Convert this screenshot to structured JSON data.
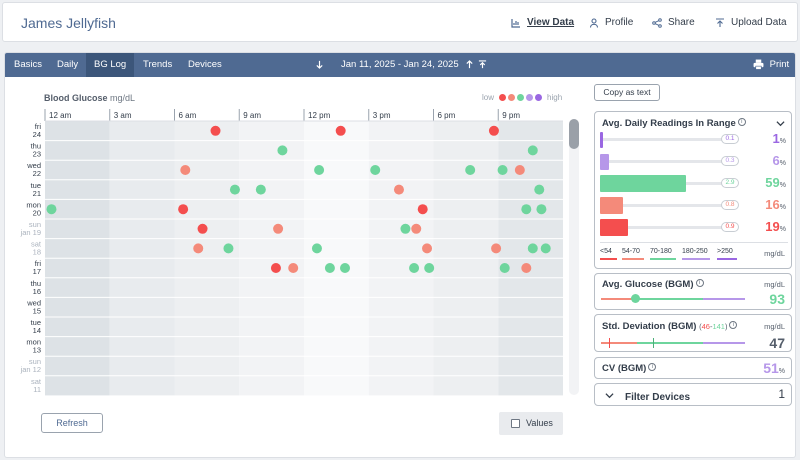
{
  "header": {
    "patient_name": "James Jellyfish",
    "view_data": "View Data",
    "profile": "Profile",
    "share": "Share",
    "upload_data": "Upload Data"
  },
  "nav": {
    "tabs": [
      "Basics",
      "Daily",
      "BG Log",
      "Trends",
      "Devices"
    ],
    "active_tab": "BG Log",
    "date_range": "Jan 11, 2025 - Jan 24, 2025",
    "print": "Print"
  },
  "chart": {
    "title": "Blood Glucose",
    "unit": "mg/dL",
    "legend_low": "low",
    "legend_high": "high",
    "legend_colors": [
      "#f44e4e",
      "#f48a7a",
      "#6ed59d",
      "#b697e9",
      "#9a67e2"
    ],
    "refresh": "Refresh",
    "values_label": "Values"
  },
  "colors": {
    "very_low": "#f44e4e",
    "low": "#f48a7a",
    "target": "#6ed59d",
    "high": "#b697e9",
    "very_high": "#9a67e2",
    "nav": "#4f6a92"
  },
  "chart_data": {
    "type": "scatter",
    "x_ticks": [
      "12 am",
      "3 am",
      "6 am",
      "9 am",
      "12 pm",
      "3 pm",
      "6 pm",
      "9 pm"
    ],
    "x_range_hours": [
      0,
      24
    ],
    "days": [
      {
        "weekday": "fri",
        "day": "24",
        "weekend": false
      },
      {
        "weekday": "thu",
        "day": "23",
        "weekend": false
      },
      {
        "weekday": "wed",
        "day": "22",
        "weekend": false
      },
      {
        "weekday": "tue",
        "day": "21",
        "weekend": false
      },
      {
        "weekday": "mon",
        "day": "20",
        "weekend": false
      },
      {
        "weekday": "sun",
        "day": "jan 19",
        "weekend": true
      },
      {
        "weekday": "sat",
        "day": "18",
        "weekend": true
      },
      {
        "weekday": "fri",
        "day": "17",
        "weekend": false
      },
      {
        "weekday": "thu",
        "day": "16",
        "weekend": false
      },
      {
        "weekday": "wed",
        "day": "15",
        "weekend": false
      },
      {
        "weekday": "tue",
        "day": "14",
        "weekend": false
      },
      {
        "weekday": "mon",
        "day": "13",
        "weekend": false
      },
      {
        "weekday": "sun",
        "day": "jan 12",
        "weekend": true
      },
      {
        "weekday": "sat",
        "day": "11",
        "weekend": true
      }
    ],
    "points": [
      {
        "day": 0,
        "hour": 7.9,
        "cat": "very_low"
      },
      {
        "day": 0,
        "hour": 13.7,
        "cat": "very_low"
      },
      {
        "day": 0,
        "hour": 20.8,
        "cat": "very_low"
      },
      {
        "day": 1,
        "hour": 11.0,
        "cat": "target"
      },
      {
        "day": 1,
        "hour": 22.6,
        "cat": "target"
      },
      {
        "day": 2,
        "hour": 6.5,
        "cat": "low"
      },
      {
        "day": 2,
        "hour": 12.7,
        "cat": "target"
      },
      {
        "day": 2,
        "hour": 15.3,
        "cat": "target"
      },
      {
        "day": 2,
        "hour": 19.7,
        "cat": "target"
      },
      {
        "day": 2,
        "hour": 21.2,
        "cat": "target"
      },
      {
        "day": 2,
        "hour": 22.0,
        "cat": "low"
      },
      {
        "day": 3,
        "hour": 8.8,
        "cat": "target"
      },
      {
        "day": 3,
        "hour": 10.0,
        "cat": "target"
      },
      {
        "day": 3,
        "hour": 16.4,
        "cat": "low"
      },
      {
        "day": 3,
        "hour": 22.9,
        "cat": "target"
      },
      {
        "day": 4,
        "hour": 0.3,
        "cat": "target"
      },
      {
        "day": 4,
        "hour": 6.4,
        "cat": "very_low"
      },
      {
        "day": 4,
        "hour": 17.5,
        "cat": "very_low"
      },
      {
        "day": 4,
        "hour": 22.3,
        "cat": "target"
      },
      {
        "day": 4,
        "hour": 23.0,
        "cat": "target"
      },
      {
        "day": 5,
        "hour": 7.3,
        "cat": "very_low"
      },
      {
        "day": 5,
        "hour": 10.8,
        "cat": "low"
      },
      {
        "day": 5,
        "hour": 16.7,
        "cat": "target"
      },
      {
        "day": 5,
        "hour": 17.2,
        "cat": "low"
      },
      {
        "day": 6,
        "hour": 7.1,
        "cat": "low"
      },
      {
        "day": 6,
        "hour": 8.5,
        "cat": "target"
      },
      {
        "day": 6,
        "hour": 12.6,
        "cat": "target"
      },
      {
        "day": 6,
        "hour": 17.7,
        "cat": "low"
      },
      {
        "day": 6,
        "hour": 20.9,
        "cat": "low"
      },
      {
        "day": 6,
        "hour": 22.6,
        "cat": "target"
      },
      {
        "day": 6,
        "hour": 23.2,
        "cat": "target"
      },
      {
        "day": 7,
        "hour": 10.7,
        "cat": "very_low"
      },
      {
        "day": 7,
        "hour": 11.5,
        "cat": "low"
      },
      {
        "day": 7,
        "hour": 13.2,
        "cat": "target"
      },
      {
        "day": 7,
        "hour": 13.9,
        "cat": "target"
      },
      {
        "day": 7,
        "hour": 17.1,
        "cat": "target"
      },
      {
        "day": 7,
        "hour": 17.8,
        "cat": "target"
      },
      {
        "day": 7,
        "hour": 21.3,
        "cat": "target"
      },
      {
        "day": 7,
        "hour": 22.3,
        "cat": "low"
      }
    ]
  },
  "stats": {
    "copy_as_text": "Copy as text",
    "tir": {
      "title": "Avg. Daily Readings In Range",
      "rows": [
        {
          "count": "0.1",
          "percent": "1",
          "fraction": 0.01,
          "cat": "very_high"
        },
        {
          "count": "0.3",
          "percent": "6",
          "fraction": 0.06,
          "cat": "high"
        },
        {
          "count": "2.9",
          "percent": "59",
          "fraction": 0.59,
          "cat": "target"
        },
        {
          "count": "0.8",
          "percent": "16",
          "fraction": 0.16,
          "cat": "low"
        },
        {
          "count": "0.9",
          "percent": "19",
          "fraction": 0.19,
          "cat": "very_low"
        }
      ],
      "ranges": [
        "<54",
        "54-70",
        "70-180",
        "180-250",
        ">250"
      ],
      "range_colors": [
        "#f44e4e",
        "#f48a7a",
        "#6ed59d",
        "#b697e9",
        "#9a67e2"
      ],
      "unit": "mg/dL"
    },
    "avg_glucose": {
      "title": "Avg. Glucose (BGM)",
      "unit": "mg/dL",
      "value": "93"
    },
    "std_dev": {
      "title": "Std. Deviation (BGM)",
      "range_low": "46",
      "range_sep": "-",
      "range_high": "141",
      "unit": "mg/dL",
      "value": "47"
    },
    "cv": {
      "title": "CV (BGM)",
      "value": "51",
      "pct": "%"
    },
    "filter": {
      "title": "Filter Devices",
      "count": "1"
    }
  }
}
